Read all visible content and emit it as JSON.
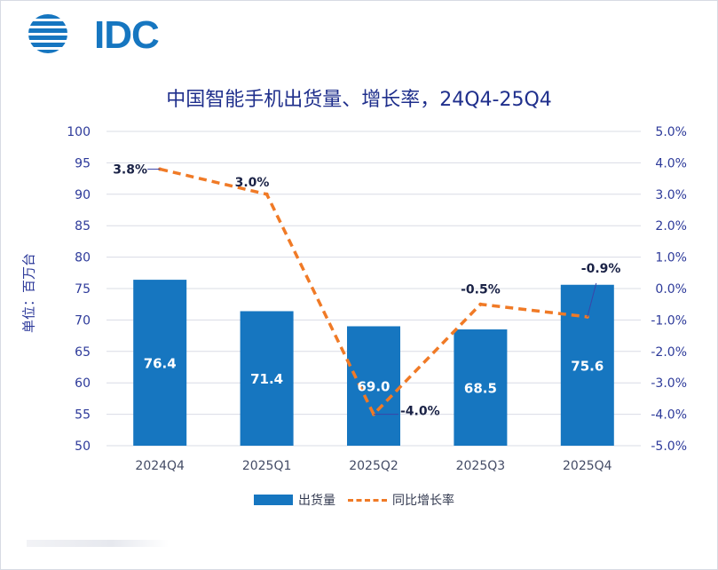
{
  "logo": {
    "text": "IDC"
  },
  "chart_data": {
    "type": "bar+line",
    "title": "中国智能手机出货量、增长率，24Q4-25Q4",
    "ylabel": "单位：百万台",
    "categories": [
      "2024Q4",
      "2025Q1",
      "2025Q2",
      "2025Q3",
      "2025Q4"
    ],
    "series": [
      {
        "name": "出货量",
        "type": "bar",
        "axis": "left",
        "color": "#1676c0",
        "values": [
          76.4,
          71.4,
          69.0,
          68.5,
          75.6
        ],
        "labels": [
          "76.4",
          "71.4",
          "69.0",
          "68.5",
          "75.6"
        ]
      },
      {
        "name": "同比增长率",
        "type": "line",
        "axis": "right",
        "color": "#f07a26",
        "values": [
          3.8,
          3.0,
          -4.0,
          -0.5,
          -0.9
        ],
        "labels": [
          "3.8%",
          "3.0%",
          "-4.0%",
          "-0.5%",
          "-0.9%"
        ]
      }
    ],
    "yleft": {
      "min": 50,
      "max": 100,
      "ticks": [
        "50",
        "55",
        "60",
        "65",
        "70",
        "75",
        "80",
        "85",
        "90",
        "95",
        "100"
      ]
    },
    "yright": {
      "min": -5,
      "max": 5,
      "ticks": [
        "-5.0%",
        "-4.0%",
        "-3.0%",
        "-2.0%",
        "-1.0%",
        "0.0%",
        "1.0%",
        "2.0%",
        "3.0%",
        "4.0%",
        "5.0%"
      ]
    },
    "legend": {
      "position": "bottom-center"
    }
  }
}
